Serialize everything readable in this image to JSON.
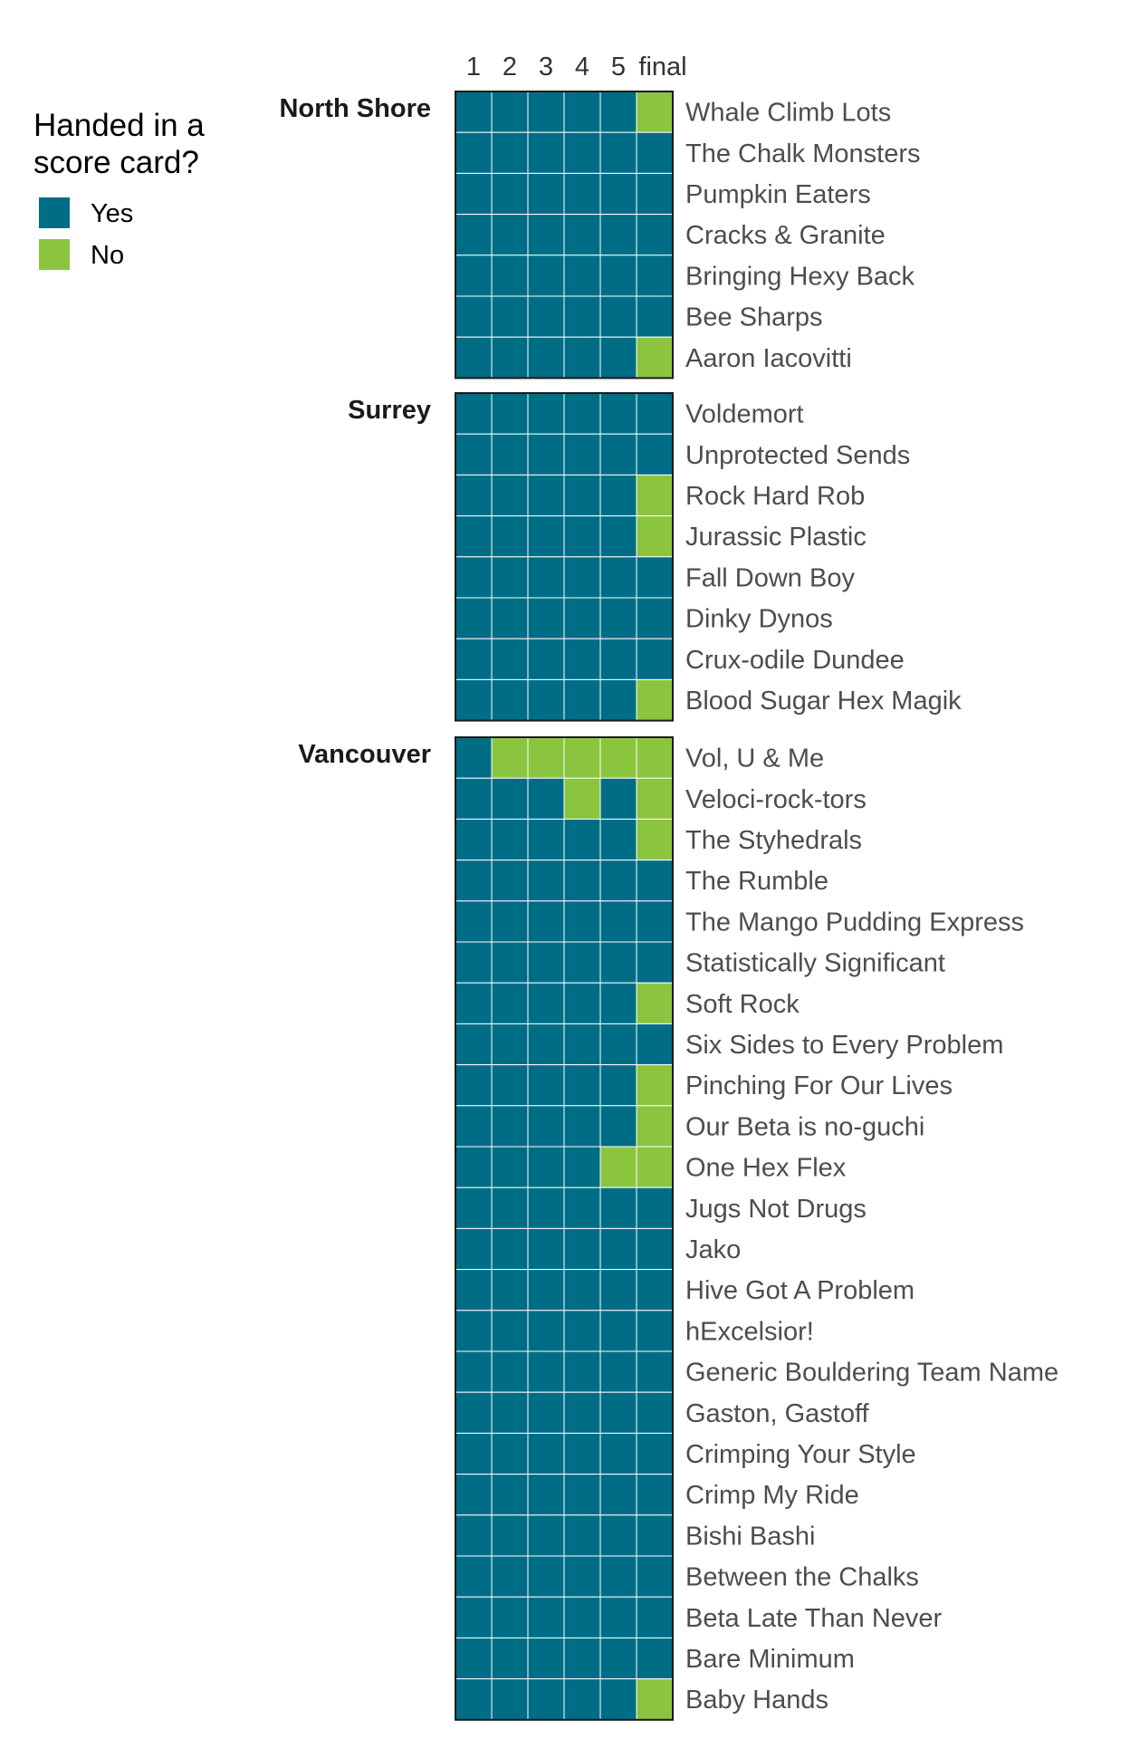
{
  "chart_data": {
    "type": "heatmap",
    "columns": [
      "1",
      "2",
      "3",
      "4",
      "5",
      "final"
    ],
    "legend": {
      "title_lines": [
        "Handed in a",
        "score card?"
      ],
      "entries": [
        {
          "key": "Y",
          "label": "Yes",
          "color": "#006D87"
        },
        {
          "key": "N",
          "label": "No",
          "color": "#8BC53F"
        }
      ]
    },
    "groups": [
      {
        "name": "North Shore",
        "teams": [
          {
            "name": "Whale Climb Lots",
            "values": [
              "Y",
              "Y",
              "Y",
              "Y",
              "Y",
              "N"
            ]
          },
          {
            "name": "The Chalk Monsters",
            "values": [
              "Y",
              "Y",
              "Y",
              "Y",
              "Y",
              "Y"
            ]
          },
          {
            "name": "Pumpkin Eaters",
            "values": [
              "Y",
              "Y",
              "Y",
              "Y",
              "Y",
              "Y"
            ]
          },
          {
            "name": "Cracks & Granite",
            "values": [
              "Y",
              "Y",
              "Y",
              "Y",
              "Y",
              "Y"
            ]
          },
          {
            "name": "Bringing Hexy Back",
            "values": [
              "Y",
              "Y",
              "Y",
              "Y",
              "Y",
              "Y"
            ]
          },
          {
            "name": "Bee Sharps",
            "values": [
              "Y",
              "Y",
              "Y",
              "Y",
              "Y",
              "Y"
            ]
          },
          {
            "name": "Aaron Iacovitti",
            "values": [
              "Y",
              "Y",
              "Y",
              "Y",
              "Y",
              "N"
            ]
          }
        ]
      },
      {
        "name": "Surrey",
        "teams": [
          {
            "name": "Voldemort",
            "values": [
              "Y",
              "Y",
              "Y",
              "Y",
              "Y",
              "Y"
            ]
          },
          {
            "name": "Unprotected Sends",
            "values": [
              "Y",
              "Y",
              "Y",
              "Y",
              "Y",
              "Y"
            ]
          },
          {
            "name": "Rock Hard Rob",
            "values": [
              "Y",
              "Y",
              "Y",
              "Y",
              "Y",
              "N"
            ]
          },
          {
            "name": "Jurassic Plastic",
            "values": [
              "Y",
              "Y",
              "Y",
              "Y",
              "Y",
              "N"
            ]
          },
          {
            "name": "Fall Down Boy",
            "values": [
              "Y",
              "Y",
              "Y",
              "Y",
              "Y",
              "Y"
            ]
          },
          {
            "name": "Dinky Dynos",
            "values": [
              "Y",
              "Y",
              "Y",
              "Y",
              "Y",
              "Y"
            ]
          },
          {
            "name": "Crux-odile Dundee",
            "values": [
              "Y",
              "Y",
              "Y",
              "Y",
              "Y",
              "Y"
            ]
          },
          {
            "name": "Blood Sugar Hex Magik",
            "values": [
              "Y",
              "Y",
              "Y",
              "Y",
              "Y",
              "N"
            ]
          }
        ]
      },
      {
        "name": "Vancouver",
        "teams": [
          {
            "name": "Vol, U & Me",
            "values": [
              "Y",
              "N",
              "N",
              "N",
              "N",
              "N"
            ]
          },
          {
            "name": "Veloci-rock-tors",
            "values": [
              "Y",
              "Y",
              "Y",
              "N",
              "Y",
              "N"
            ]
          },
          {
            "name": "The Styhedrals",
            "values": [
              "Y",
              "Y",
              "Y",
              "Y",
              "Y",
              "N"
            ]
          },
          {
            "name": "The Rumble",
            "values": [
              "Y",
              "Y",
              "Y",
              "Y",
              "Y",
              "Y"
            ]
          },
          {
            "name": "The Mango Pudding Express",
            "values": [
              "Y",
              "Y",
              "Y",
              "Y",
              "Y",
              "Y"
            ]
          },
          {
            "name": "Statistically Significant",
            "values": [
              "Y",
              "Y",
              "Y",
              "Y",
              "Y",
              "Y"
            ]
          },
          {
            "name": "Soft Rock",
            "values": [
              "Y",
              "Y",
              "Y",
              "Y",
              "Y",
              "N"
            ]
          },
          {
            "name": "Six Sides to Every Problem",
            "values": [
              "Y",
              "Y",
              "Y",
              "Y",
              "Y",
              "Y"
            ]
          },
          {
            "name": "Pinching For Our Lives",
            "values": [
              "Y",
              "Y",
              "Y",
              "Y",
              "Y",
              "N"
            ]
          },
          {
            "name": "Our Beta is no-guchi",
            "values": [
              "Y",
              "Y",
              "Y",
              "Y",
              "Y",
              "N"
            ]
          },
          {
            "name": "One Hex Flex",
            "values": [
              "Y",
              "Y",
              "Y",
              "Y",
              "N",
              "N"
            ]
          },
          {
            "name": "Jugs Not Drugs",
            "values": [
              "Y",
              "Y",
              "Y",
              "Y",
              "Y",
              "Y"
            ]
          },
          {
            "name": "Jako",
            "values": [
              "Y",
              "Y",
              "Y",
              "Y",
              "Y",
              "Y"
            ]
          },
          {
            "name": "Hive Got A Problem",
            "values": [
              "Y",
              "Y",
              "Y",
              "Y",
              "Y",
              "Y"
            ]
          },
          {
            "name": "hExcelsior!",
            "values": [
              "Y",
              "Y",
              "Y",
              "Y",
              "Y",
              "Y"
            ]
          },
          {
            "name": "Generic Bouldering Team Name",
            "values": [
              "Y",
              "Y",
              "Y",
              "Y",
              "Y",
              "Y"
            ]
          },
          {
            "name": "Gaston, Gastoff",
            "values": [
              "Y",
              "Y",
              "Y",
              "Y",
              "Y",
              "Y"
            ]
          },
          {
            "name": "Crimping Your Style",
            "values": [
              "Y",
              "Y",
              "Y",
              "Y",
              "Y",
              "Y"
            ]
          },
          {
            "name": "Crimp My Ride",
            "values": [
              "Y",
              "Y",
              "Y",
              "Y",
              "Y",
              "Y"
            ]
          },
          {
            "name": "Bishi Bashi",
            "values": [
              "Y",
              "Y",
              "Y",
              "Y",
              "Y",
              "Y"
            ]
          },
          {
            "name": "Between the Chalks",
            "values": [
              "Y",
              "Y",
              "Y",
              "Y",
              "Y",
              "Y"
            ]
          },
          {
            "name": "Beta Late Than Never",
            "values": [
              "Y",
              "Y",
              "Y",
              "Y",
              "Y",
              "Y"
            ]
          },
          {
            "name": "Bare Minimum",
            "values": [
              "Y",
              "Y",
              "Y",
              "Y",
              "Y",
              "Y"
            ]
          },
          {
            "name": "Baby Hands",
            "values": [
              "Y",
              "Y",
              "Y",
              "Y",
              "Y",
              "N"
            ]
          }
        ]
      }
    ]
  }
}
